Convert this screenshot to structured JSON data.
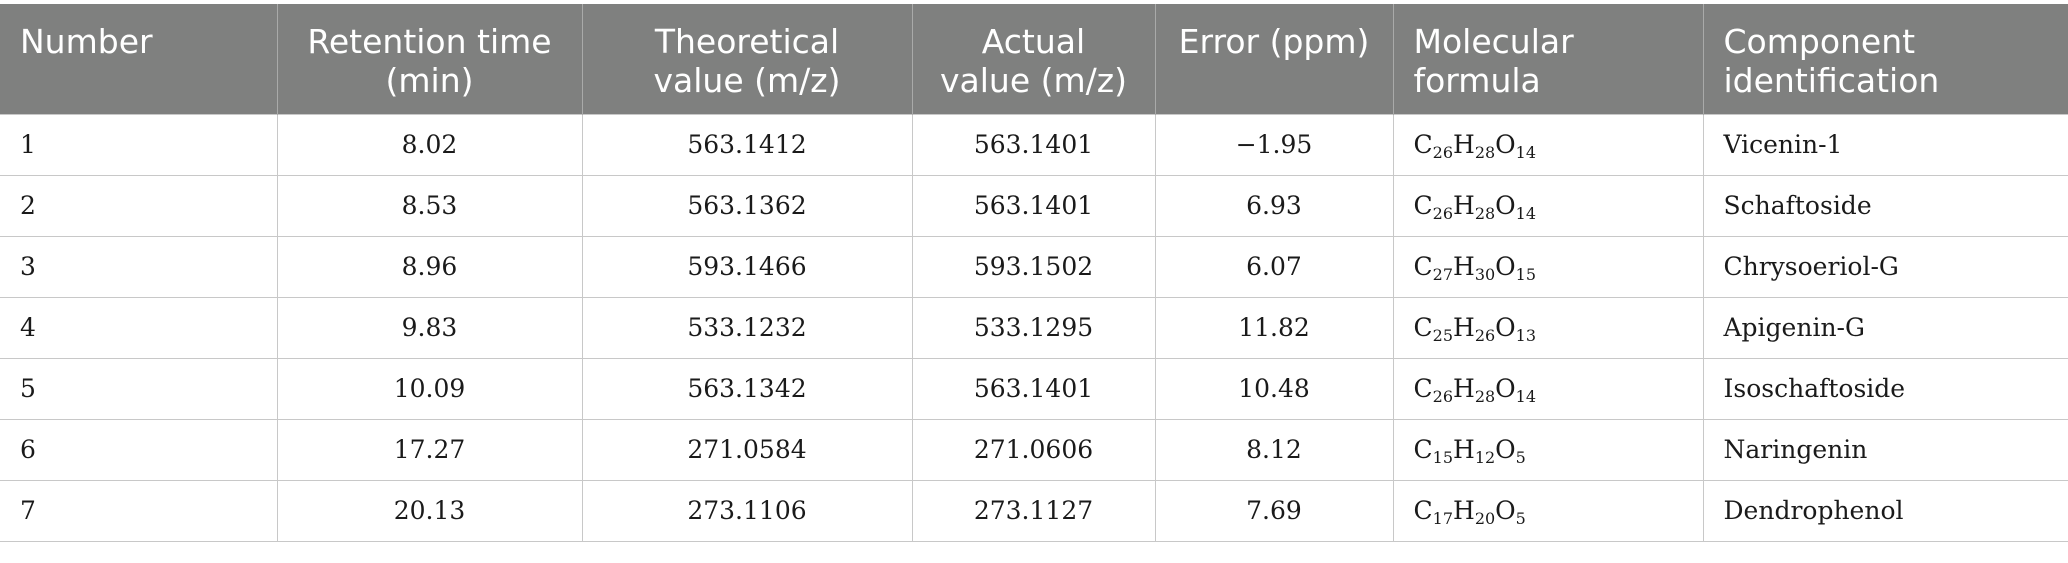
{
  "table": {
    "headers": [
      {
        "line1": "Number",
        "line2": ""
      },
      {
        "line1": "Retention time",
        "line2": "(min)"
      },
      {
        "line1": "Theoretical",
        "line2": "value (m/z)"
      },
      {
        "line1": "Actual",
        "line2": "value (m/z)"
      },
      {
        "line1": "Error (ppm)",
        "line2": ""
      },
      {
        "line1": "Molecular",
        "line2": "formula"
      },
      {
        "line1": "Component",
        "line2": "identification"
      }
    ],
    "rows": [
      {
        "number": "1",
        "retention": "8.02",
        "theoretical": "563.1412",
        "actual": "563.1401",
        "error": "−1.95",
        "formula": [
          {
            "el": "C",
            "n": "26"
          },
          {
            "el": "H",
            "n": "28"
          },
          {
            "el": "O",
            "n": "14"
          }
        ],
        "component": "Vicenin-1"
      },
      {
        "number": "2",
        "retention": "8.53",
        "theoretical": "563.1362",
        "actual": "563.1401",
        "error": "6.93",
        "formula": [
          {
            "el": "C",
            "n": "26"
          },
          {
            "el": "H",
            "n": "28"
          },
          {
            "el": "O",
            "n": "14"
          }
        ],
        "component": "Schaftoside"
      },
      {
        "number": "3",
        "retention": "8.96",
        "theoretical": "593.1466",
        "actual": "593.1502",
        "error": "6.07",
        "formula": [
          {
            "el": "C",
            "n": "27"
          },
          {
            "el": "H",
            "n": "30"
          },
          {
            "el": "O",
            "n": "15"
          }
        ],
        "component": "Chrysoeriol-G"
      },
      {
        "number": "4",
        "retention": "9.83",
        "theoretical": "533.1232",
        "actual": "533.1295",
        "error": "11.82",
        "formula": [
          {
            "el": "C",
            "n": "25"
          },
          {
            "el": "H",
            "n": "26"
          },
          {
            "el": "O",
            "n": "13"
          }
        ],
        "component": "Apigenin-G"
      },
      {
        "number": "5",
        "retention": "10.09",
        "theoretical": "563.1342",
        "actual": "563.1401",
        "error": "10.48",
        "formula": [
          {
            "el": "C",
            "n": "26"
          },
          {
            "el": "H",
            "n": "28"
          },
          {
            "el": "O",
            "n": "14"
          }
        ],
        "component": "Isoschaftoside"
      },
      {
        "number": "6",
        "retention": "17.27",
        "theoretical": "271.0584",
        "actual": "271.0606",
        "error": "8.12",
        "formula": [
          {
            "el": "C",
            "n": "15"
          },
          {
            "el": "H",
            "n": "12"
          },
          {
            "el": "O",
            "n": "5"
          }
        ],
        "component": "Naringenin"
      },
      {
        "number": "7",
        "retention": "20.13",
        "theoretical": "273.1106",
        "actual": "273.1127",
        "error": "7.69",
        "formula": [
          {
            "el": "C",
            "n": "17"
          },
          {
            "el": "H",
            "n": "20"
          },
          {
            "el": "O",
            "n": "5"
          }
        ],
        "component": "Dendrophenol"
      }
    ]
  },
  "colors": {
    "header_background": "#7f807f",
    "header_text": "#ffffff",
    "body_text": "#1a1a1a",
    "grid_line": "#c8c8c8"
  }
}
